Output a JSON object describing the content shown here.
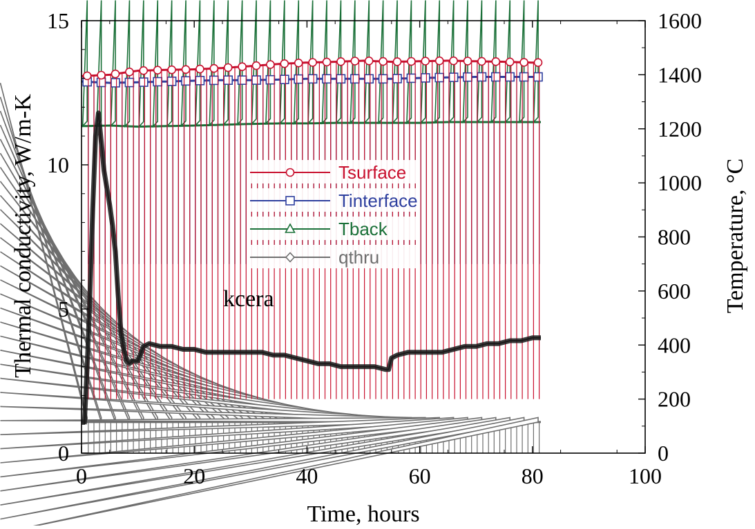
{
  "chart_data": {
    "type": "line",
    "xlabel": "Time, hours",
    "ylabel_left": "Thermal conductivity, W/m-K",
    "ylabel_right": "Temperature, °C",
    "xlim": [
      0,
      100
    ],
    "ylim_left": [
      0,
      15
    ],
    "ylim_right": [
      0,
      1600
    ],
    "x_ticks": [
      "0",
      "20",
      "40",
      "60",
      "80",
      "100"
    ],
    "y_left_ticks": [
      "0",
      "5",
      "10",
      "15"
    ],
    "y_right_ticks": [
      "0",
      "200",
      "400",
      "600",
      "800",
      "1000",
      "1200",
      "1400",
      "1600"
    ],
    "grid": false,
    "legend_position": "center-left",
    "annotation": "kcera",
    "cycling": {
      "period_hours": 1.0,
      "x_start": 1.2,
      "x_end": 81.5,
      "cold_phase_temperatures_C": {
        "Tsurface": 200,
        "Tinterface": 700,
        "Tback": 700,
        "qthru": 0
      }
    },
    "series": [
      {
        "name": "Tsurface",
        "axis": "right",
        "color": "#c8102e",
        "marker": "circle",
        "x": [
          0,
          5,
          10,
          15,
          20,
          25,
          30,
          35,
          40,
          45,
          50,
          55,
          60,
          65,
          70,
          75,
          80,
          81.5
        ],
        "y": [
          1395,
          1400,
          1415,
          1418,
          1420,
          1425,
          1432,
          1440,
          1445,
          1448,
          1452,
          1448,
          1450,
          1452,
          1450,
          1448,
          1445,
          1445
        ]
      },
      {
        "name": "Tinterface",
        "axis": "right",
        "color": "#2e3f9e",
        "marker": "square",
        "x": [
          0,
          5,
          10,
          15,
          20,
          25,
          30,
          35,
          40,
          45,
          50,
          55,
          60,
          65,
          70,
          75,
          80,
          81.5
        ],
        "y": [
          1375,
          1370,
          1372,
          1375,
          1378,
          1380,
          1380,
          1382,
          1385,
          1385,
          1385,
          1385,
          1388,
          1390,
          1392,
          1392,
          1392,
          1392
        ]
      },
      {
        "name": "Tback",
        "axis": "right",
        "color": "#1a7038",
        "marker": "triangle",
        "x": [
          0,
          5,
          10,
          15,
          20,
          25,
          30,
          35,
          40,
          45,
          50,
          55,
          60,
          65,
          70,
          75,
          80,
          81.5
        ],
        "y": [
          1210,
          1212,
          1208,
          1210,
          1212,
          1215,
          1218,
          1220,
          1220,
          1222,
          1222,
          1222,
          1222,
          1225,
          1225,
          1225,
          1225,
          1225
        ]
      },
      {
        "name": "qthru",
        "axis": "right",
        "color": "#6e6e6e",
        "marker": "diamond",
        "x": [
          0,
          5,
          10,
          15,
          20,
          25,
          30,
          35,
          40,
          45,
          50,
          55,
          60,
          65,
          70,
          75,
          80,
          81.5
        ],
        "y": [
          115,
          115,
          115,
          115,
          115,
          115,
          115,
          115,
          115,
          115,
          115,
          115,
          115,
          115,
          115,
          115,
          115,
          115
        ]
      },
      {
        "name": "kcera",
        "axis": "left",
        "color": "#1a1a1a",
        "marker": "none",
        "x": [
          0.5,
          1,
          1.5,
          2,
          2.5,
          3,
          3.5,
          4,
          4.5,
          5,
          5.5,
          6,
          6.5,
          7,
          7.5,
          8,
          8.5,
          9,
          9.5,
          10,
          11,
          12,
          14,
          16,
          18,
          20,
          22,
          24,
          26,
          28,
          30,
          32,
          34,
          36,
          38,
          40,
          42,
          44,
          46,
          48,
          50,
          52,
          54,
          54.5,
          55,
          56,
          58,
          60,
          62,
          64,
          66,
          68,
          70,
          72,
          74,
          76,
          78,
          80,
          81.5
        ],
        "y": [
          1.0,
          3.0,
          5.5,
          8.5,
          11.0,
          11.8,
          10.8,
          9.8,
          9.2,
          8.6,
          7.9,
          7.0,
          5.5,
          4.2,
          3.6,
          3.2,
          3.1,
          3.2,
          3.2,
          3.2,
          3.7,
          3.8,
          3.7,
          3.7,
          3.6,
          3.6,
          3.5,
          3.5,
          3.5,
          3.5,
          3.5,
          3.5,
          3.4,
          3.4,
          3.3,
          3.2,
          3.1,
          3.1,
          3.0,
          3.0,
          3.0,
          3.0,
          2.9,
          2.9,
          3.3,
          3.4,
          3.5,
          3.5,
          3.5,
          3.5,
          3.6,
          3.7,
          3.7,
          3.8,
          3.8,
          3.9,
          3.9,
          4.0,
          4.0
        ]
      }
    ]
  }
}
